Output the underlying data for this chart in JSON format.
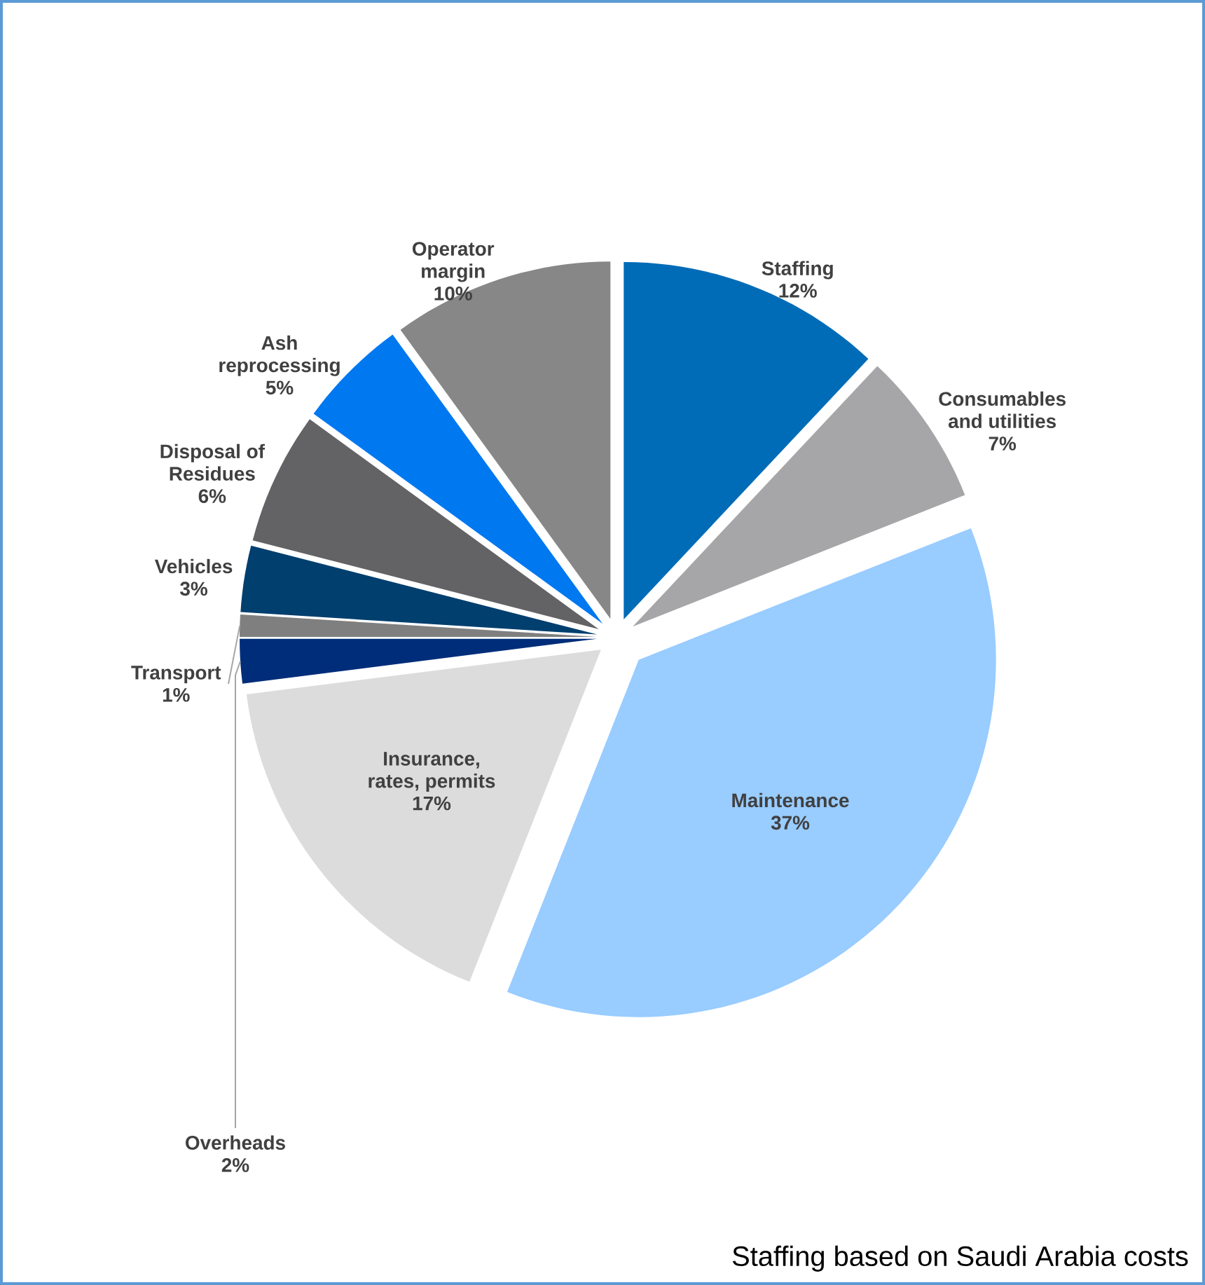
{
  "chart_data": {
    "type": "pie",
    "categories": [
      "Staffing",
      "Consumables and utilities",
      "Maintenance",
      "Insurance, rates, permits",
      "Overheads",
      "Transport",
      "Vehicles",
      "Disposal of Residues",
      "Ash reprocessing",
      "Operator margin"
    ],
    "values": [
      12,
      7,
      37,
      17,
      2,
      1,
      3,
      6,
      5,
      10
    ],
    "value_labels": [
      "12%",
      "7%",
      "37%",
      "17%",
      "2%",
      "1%",
      "3%",
      "6%",
      "5%",
      "10%"
    ],
    "colors": [
      "#006bb6",
      "#a6a6a8",
      "#99ccff",
      "#dcdcdc",
      "#002d7a",
      "#7f7f7f",
      "#003f6e",
      "#636366",
      "#0078f0",
      "#878787"
    ],
    "annotations": [
      "Staffing based on Saudi Arabia costs"
    ]
  }
}
